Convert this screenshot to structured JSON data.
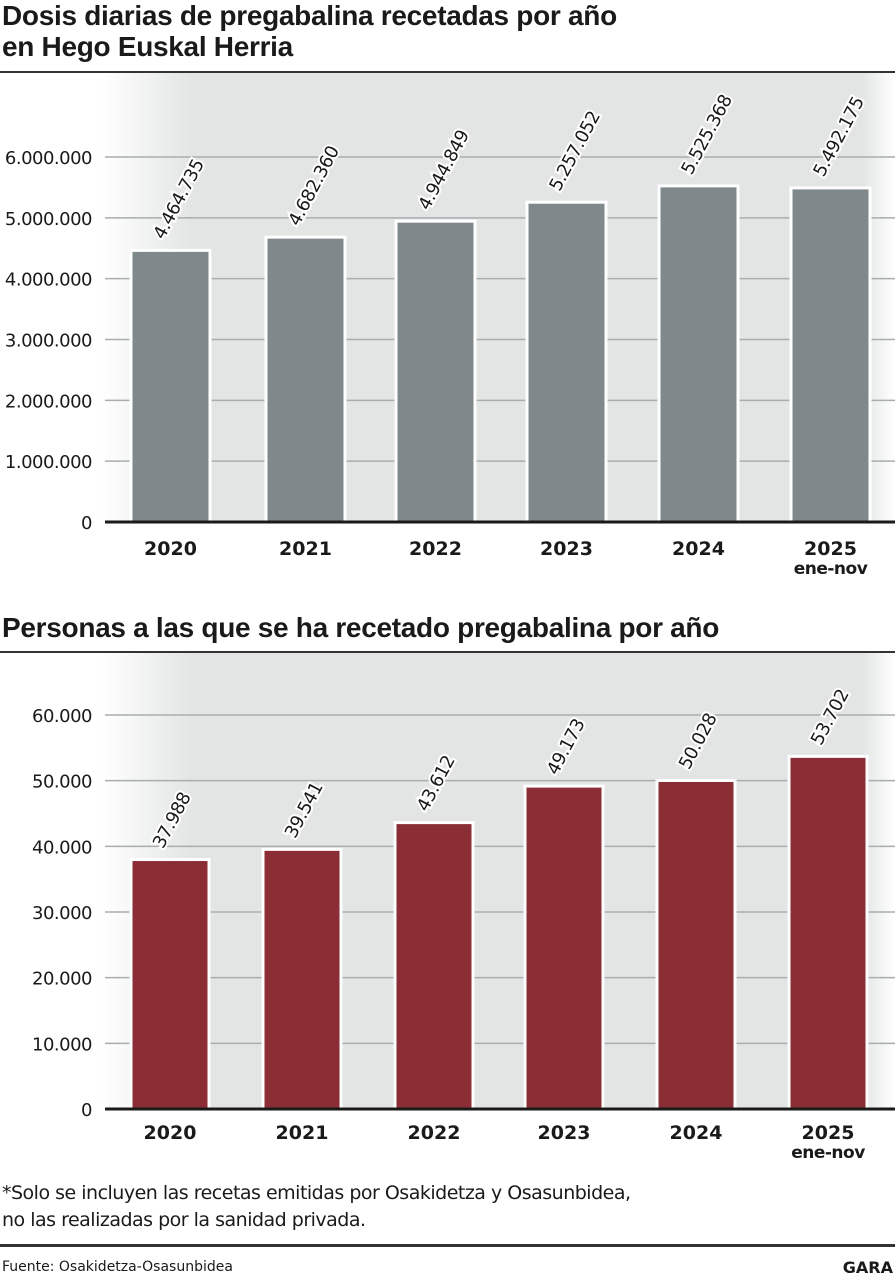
{
  "chart_data": [
    {
      "type": "bar",
      "title": "Dosis diarias de pregabalina recetadas por año en Hego Euskal Herria",
      "title_lines": [
        "Dosis diarias de pregabalina recetadas por año",
        "en Hego Euskal Herria"
      ],
      "categories": [
        "2020",
        "2021",
        "2022",
        "2023",
        "2024",
        "2025"
      ],
      "category_sublabels": [
        "",
        "",
        "",
        "",
        "",
        "ene-nov"
      ],
      "values": [
        4464735,
        4682360,
        4944849,
        5257052,
        5525368,
        5492175
      ],
      "value_labels": [
        "4.464.735",
        "4.682.360",
        "4.944.849",
        "5.257.052",
        "5.525.368",
        "5.492.175"
      ],
      "yticks": [
        0,
        1000000,
        2000000,
        3000000,
        4000000,
        5000000,
        6000000
      ],
      "ytick_labels": [
        "0",
        "1.000.000",
        "2.000.000",
        "3.000.000",
        "4.000.000",
        "5.000.000",
        "6.000.000"
      ],
      "ylim": [
        0,
        6000000
      ],
      "xlabel": "",
      "ylabel": "",
      "grid": true,
      "bar_color": "#7f898c"
    },
    {
      "type": "bar",
      "title": "Personas a las que se ha recetado pregabalina por año",
      "title_lines": [
        "Personas a las que se ha recetado pregabalina por año"
      ],
      "categories": [
        "2020",
        "2021",
        "2022",
        "2023",
        "2024",
        "2025"
      ],
      "category_sublabels": [
        "",
        "",
        "",
        "",
        "",
        "ene-nov"
      ],
      "values": [
        37988,
        39541,
        43612,
        49173,
        50028,
        53702
      ],
      "value_labels": [
        "37.988",
        "39.541",
        "43.612",
        "49.173",
        "50.028",
        "53.702"
      ],
      "yticks": [
        0,
        10000,
        20000,
        30000,
        40000,
        50000,
        60000
      ],
      "ytick_labels": [
        "0",
        "10.000",
        "20.000",
        "30.000",
        "40.000",
        "50.000",
        "60.000"
      ],
      "ylim": [
        0,
        60000
      ],
      "xlabel": "",
      "ylabel": "",
      "grid": true,
      "bar_color": "#8b2d34"
    }
  ],
  "footnote_lines": [
    "*Solo se incluyen las recetas emitidas por Osakidetza y Osasunbidea,",
    "no las realizadas por la sanidad privada."
  ],
  "source": "Fuente: Osakidetza-Osasunbidea",
  "brand": "GARA"
}
